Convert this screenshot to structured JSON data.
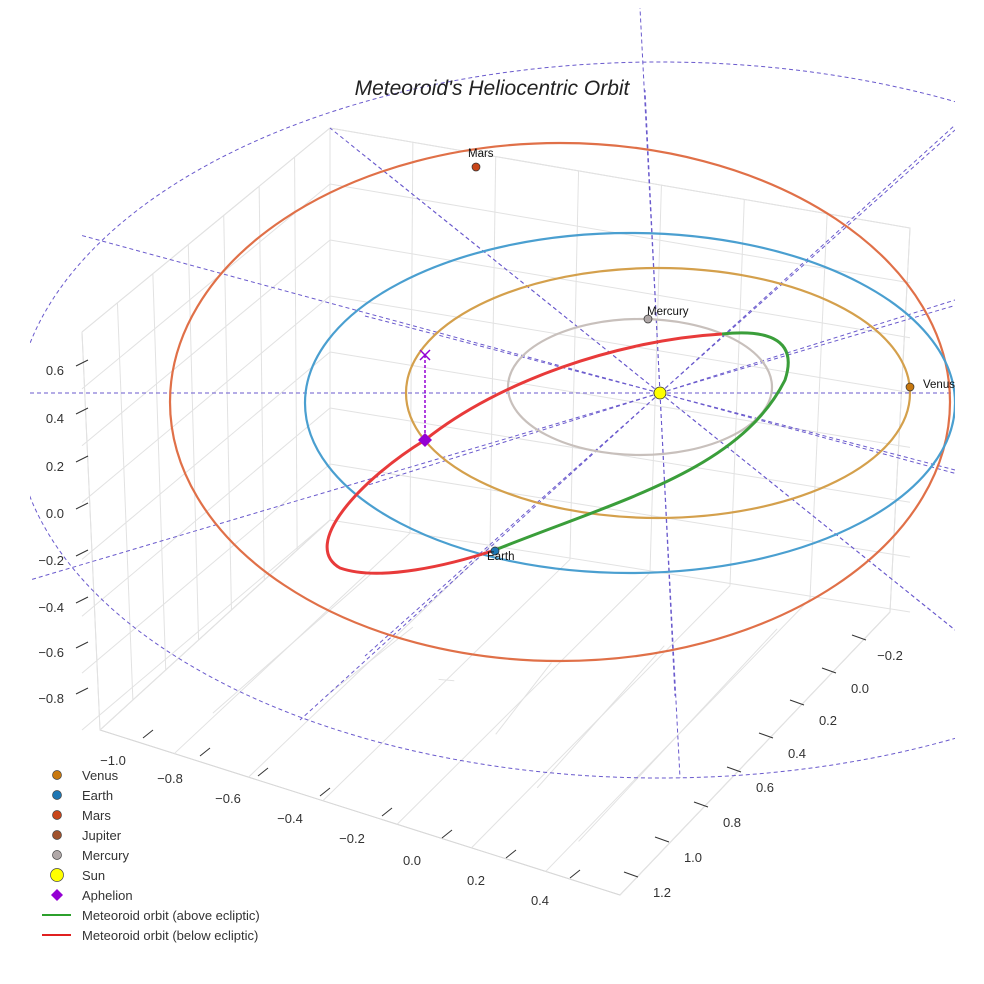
{
  "chart_data": {
    "type": "scatter3d",
    "title": "Meteoroid's Heliocentric Orbit",
    "x_ticks": [
      "−1.0",
      "−0.8",
      "−0.6",
      "−0.4",
      "−0.2",
      "0.0",
      "0.2",
      "0.4"
    ],
    "y_ticks": [
      "−0.2",
      "0.0",
      "0.2",
      "0.4",
      "0.6",
      "0.8",
      "1.0",
      "1.2"
    ],
    "z_ticks": [
      "0.6",
      "0.4",
      "0.2",
      "0.0",
      "−0.2",
      "−0.4",
      "−0.6",
      "−0.8"
    ],
    "planet_labels": {
      "mars": "Mars",
      "mercury": "Mercury",
      "venus": "Venus",
      "earth": "Earth"
    },
    "legend": [
      {
        "label": "Venus",
        "marker": "circle",
        "color": "#c8780f"
      },
      {
        "label": "Earth",
        "marker": "circle",
        "color": "#1f77b4"
      },
      {
        "label": "Mars",
        "marker": "circle",
        "color": "#c8461a"
      },
      {
        "label": "Jupiter",
        "marker": "circle",
        "color": "#a0522d"
      },
      {
        "label": "Mercury",
        "marker": "circle",
        "color": "#b0a8a8"
      },
      {
        "label": "Sun",
        "marker": "circle",
        "color": "#ffff00"
      },
      {
        "label": "Aphelion",
        "marker": "diamond",
        "color": "#9400d3"
      },
      {
        "label": "Meteoroid orbit (above ecliptic)",
        "marker": "line",
        "color": "#2ca02c"
      },
      {
        "label": "Meteoroid orbit (below ecliptic)",
        "marker": "line",
        "color": "#e02020"
      }
    ],
    "legend_position": "bottom-left"
  }
}
